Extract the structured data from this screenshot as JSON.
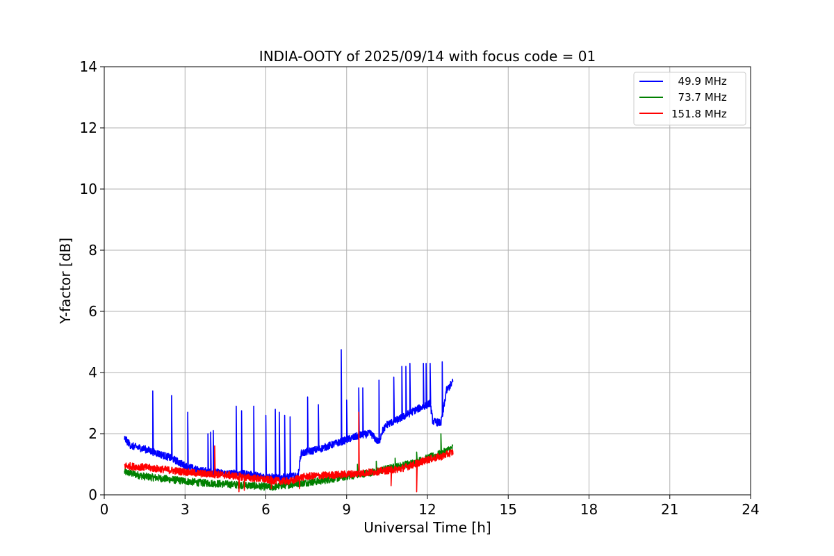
{
  "chart_data": {
    "type": "line",
    "title": "INDIA-OOTY of 2025/09/14 with focus code = 01",
    "xlabel": "Universal Time [h]",
    "ylabel": "Y-factor [dB]",
    "xlim": [
      0,
      24
    ],
    "ylim": [
      0,
      14
    ],
    "xticks": [
      0,
      3,
      6,
      9,
      12,
      15,
      18,
      21,
      24
    ],
    "xtick_labels": [
      "0",
      "3",
      "6",
      "9",
      "12",
      "15",
      "18",
      "21",
      "24"
    ],
    "yticks": [
      0,
      2,
      4,
      6,
      8,
      10,
      12,
      14
    ],
    "ytick_labels": [
      "0",
      "2",
      "4",
      "6",
      "8",
      "10",
      "12",
      "14"
    ],
    "grid": true,
    "legend_position": "top-right",
    "series": [
      {
        "name": "  49.9 MHz",
        "color": "#0000ff",
        "noise": 0.12,
        "x": [
          0.75,
          1.0,
          1.5,
          2.0,
          2.5,
          3.0,
          3.5,
          4.0,
          4.5,
          5.0,
          5.5,
          6.0,
          6.5,
          7.0,
          7.2,
          7.3,
          7.5,
          8.0,
          8.5,
          9.0,
          9.5,
          9.9,
          10.2,
          10.3,
          10.5,
          11.0,
          11.5,
          12.0,
          12.1,
          12.2,
          12.5,
          12.6,
          12.7,
          12.95
        ],
        "y": [
          1.85,
          1.6,
          1.5,
          1.35,
          1.2,
          0.95,
          0.8,
          0.75,
          0.7,
          0.7,
          0.65,
          0.6,
          0.55,
          0.6,
          0.6,
          1.35,
          1.4,
          1.5,
          1.65,
          1.8,
          1.95,
          2.0,
          1.7,
          2.05,
          2.3,
          2.5,
          2.75,
          2.95,
          3.0,
          2.4,
          2.35,
          2.8,
          3.4,
          3.7
        ],
        "spikes": [
          [
            1.8,
            3.4
          ],
          [
            2.5,
            3.25
          ],
          [
            3.1,
            2.7
          ],
          [
            3.85,
            2.0
          ],
          [
            3.95,
            2.05
          ],
          [
            4.05,
            2.1
          ],
          [
            4.9,
            2.9
          ],
          [
            5.1,
            2.75
          ],
          [
            5.55,
            2.9
          ],
          [
            6.0,
            2.6
          ],
          [
            6.35,
            2.8
          ],
          [
            6.5,
            2.7
          ],
          [
            6.7,
            2.6
          ],
          [
            6.9,
            2.55
          ],
          [
            7.55,
            3.2
          ],
          [
            7.95,
            2.95
          ],
          [
            8.8,
            4.75
          ],
          [
            9.0,
            3.1
          ],
          [
            9.45,
            3.5
          ],
          [
            9.6,
            3.5
          ],
          [
            10.2,
            3.75
          ],
          [
            10.75,
            3.85
          ],
          [
            11.05,
            4.2
          ],
          [
            11.2,
            4.2
          ],
          [
            11.35,
            4.3
          ],
          [
            11.85,
            4.3
          ],
          [
            11.95,
            4.3
          ],
          [
            12.1,
            4.3
          ],
          [
            12.55,
            4.35
          ]
        ]
      },
      {
        "name": "  73.7 MHz",
        "color": "#008000",
        "noise": 0.12,
        "x": [
          0.75,
          1.5,
          2.5,
          3.5,
          4.5,
          5.5,
          6.2,
          7.0,
          8.0,
          9.0,
          10.0,
          10.5,
          11.0,
          11.5,
          12.0,
          12.5,
          12.95
        ],
        "y": [
          0.75,
          0.6,
          0.5,
          0.4,
          0.35,
          0.3,
          0.25,
          0.35,
          0.45,
          0.6,
          0.75,
          0.85,
          0.95,
          1.05,
          1.2,
          1.35,
          1.55
        ],
        "spikes": [
          [
            9.4,
            1.0
          ],
          [
            10.1,
            1.1
          ],
          [
            10.8,
            1.2
          ],
          [
            11.6,
            1.4
          ],
          [
            12.5,
            2.0
          ]
        ]
      },
      {
        "name": "151.8 MHz",
        "color": "#ff0000",
        "noise": 0.12,
        "x": [
          0.75,
          1.5,
          2.5,
          3.5,
          4.5,
          5.5,
          6.5,
          7.0,
          7.2,
          7.5,
          8.5,
          9.5,
          10.5,
          11.0,
          11.5,
          12.0,
          12.5,
          12.95
        ],
        "y": [
          0.95,
          0.9,
          0.8,
          0.7,
          0.65,
          0.55,
          0.45,
          0.45,
          0.55,
          0.6,
          0.65,
          0.7,
          0.8,
          0.85,
          1.0,
          1.15,
          1.25,
          1.4
        ],
        "spikes": [
          [
            4.1,
            1.6
          ],
          [
            9.45,
            2.7
          ],
          [
            11.6,
            0.1
          ],
          [
            5.0,
            0.1
          ],
          [
            5.2,
            0.15
          ],
          [
            6.2,
            0.2
          ],
          [
            7.25,
            0.2
          ],
          [
            10.65,
            0.3
          ]
        ]
      }
    ]
  }
}
